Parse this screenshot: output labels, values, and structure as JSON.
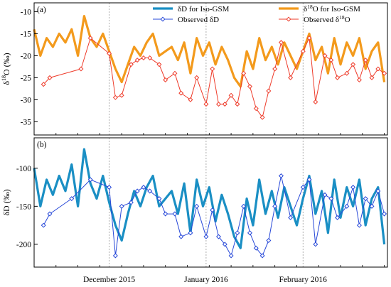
{
  "chart_data": {
    "type": "line",
    "x_axis": {
      "start": "2015-11-07",
      "end": "2016-02-28",
      "month_tick_labels": [
        {
          "date": "2015-12-01",
          "label": "December 2015"
        },
        {
          "date": "2016-01-01",
          "label": "January 2016"
        },
        {
          "date": "2016-02-01",
          "label": "February 2016"
        }
      ]
    },
    "legend": {
      "placement": "top",
      "entries": [
        {
          "label": "δD for Iso-GSM",
          "color": "#1a8fc4",
          "style": "thick-line"
        },
        {
          "label": "Observed δD",
          "color": "#2748d8",
          "style": "line-diamond"
        },
        {
          "label_pre": "δ",
          "label_sup": "18",
          "label_post": "O for Iso-GSM",
          "color": "#f39a1c",
          "style": "thick-line"
        },
        {
          "label_pre": "Observed δ",
          "label_sup": "18",
          "label_post": "O",
          "color": "#ee3b2a",
          "style": "line-diamond"
        }
      ]
    },
    "panels": [
      {
        "id": "a",
        "panel_label": "(a)",
        "ylabel_pre": "δ",
        "ylabel_sup": "18",
        "ylabel_post": "O (‰)",
        "ylim": [
          -38,
          -8
        ],
        "yticks": [
          -10,
          -15,
          -20,
          -25,
          -30,
          -35
        ],
        "series": [
          {
            "name": "δ18O for Iso-GSM",
            "color": "#f39a1c",
            "x": [
              "2015-11-07",
              "2015-11-09",
              "2015-11-11",
              "2015-11-13",
              "2015-11-15",
              "2015-11-17",
              "2015-11-19",
              "2015-11-21",
              "2015-11-23",
              "2015-11-25",
              "2015-11-27",
              "2015-11-29",
              "2015-12-01",
              "2015-12-03",
              "2015-12-05",
              "2015-12-07",
              "2015-12-09",
              "2015-12-11",
              "2015-12-13",
              "2015-12-15",
              "2015-12-17",
              "2015-12-19",
              "2015-12-21",
              "2015-12-23",
              "2015-12-25",
              "2015-12-27",
              "2015-12-29",
              "2015-12-31",
              "2016-01-02",
              "2016-01-04",
              "2016-01-06",
              "2016-01-08",
              "2016-01-10",
              "2016-01-12",
              "2016-01-14",
              "2016-01-16",
              "2016-01-18",
              "2016-01-20",
              "2016-01-22",
              "2016-01-24",
              "2016-01-26",
              "2016-01-28",
              "2016-01-30",
              "2016-02-01",
              "2016-02-03",
              "2016-02-05",
              "2016-02-07",
              "2016-02-09",
              "2016-02-11",
              "2016-02-13",
              "2016-02-15",
              "2016-02-17",
              "2016-02-19",
              "2016-02-21",
              "2016-02-23",
              "2016-02-25",
              "2016-02-27"
            ],
            "values": [
              -14,
              -20,
              -16,
              -18,
              -15,
              -17,
              -14,
              -20,
              -11,
              -16,
              -18,
              -15,
              -19,
              -23,
              -26,
              -22,
              -18,
              -20,
              -17,
              -15,
              -20,
              -19,
              -18,
              -21,
              -17,
              -24,
              -16,
              -20,
              -17,
              -22,
              -18,
              -21,
              -25,
              -27,
              -19,
              -23,
              -16,
              -21,
              -18,
              -22,
              -17,
              -20,
              -23,
              -19,
              -15,
              -21,
              -18,
              -24,
              -16,
              -22,
              -17,
              -20,
              -16,
              -23,
              -19,
              -17,
              -26
            ]
          },
          {
            "name": "Observed δ18O",
            "color": "#ee3b2a",
            "x": [
              "2015-11-10",
              "2015-11-12",
              "2015-11-22",
              "2015-11-25",
              "2015-12-01",
              "2015-12-03",
              "2015-12-05",
              "2015-12-08",
              "2015-12-10",
              "2015-12-12",
              "2015-12-14",
              "2015-12-17",
              "2015-12-19",
              "2015-12-22",
              "2015-12-24",
              "2015-12-27",
              "2015-12-29",
              "2016-01-01",
              "2016-01-03",
              "2016-01-05",
              "2016-01-07",
              "2016-01-09",
              "2016-01-11",
              "2016-01-13",
              "2016-01-15",
              "2016-01-17",
              "2016-01-19",
              "2016-01-21",
              "2016-01-23",
              "2016-01-25",
              "2016-01-28",
              "2016-02-01",
              "2016-02-03",
              "2016-02-05",
              "2016-02-08",
              "2016-02-10",
              "2016-02-12",
              "2016-02-15",
              "2016-02-17",
              "2016-02-19",
              "2016-02-21",
              "2016-02-23",
              "2016-02-25",
              "2016-02-27"
            ],
            "values": [
              -26.5,
              -25,
              -23,
              -16,
              -19.5,
              -29.5,
              -29,
              -22,
              -21,
              -20.5,
              -20.5,
              -22,
              -25.5,
              -24,
              -28.5,
              -30,
              -25,
              -31,
              -23,
              -31,
              -31,
              -29,
              -31,
              -24,
              -27,
              -32,
              -34,
              -28,
              -23,
              -17,
              -25,
              -19,
              -16,
              -30.5,
              -20,
              -21,
              -25,
              -24,
              -22,
              -25.5,
              -21,
              -25,
              -23,
              -24
            ]
          }
        ]
      },
      {
        "id": "b",
        "panel_label": "(b)",
        "ylabel_pre": "δD (‰)",
        "ylabel_sup": "",
        "ylabel_post": "",
        "ylim": [
          -230,
          -60
        ],
        "yticks": [
          -100,
          -150,
          -200
        ],
        "series": [
          {
            "name": "δD for Iso-GSM",
            "color": "#1a8fc4",
            "x": [
              "2015-11-07",
              "2015-11-09",
              "2015-11-11",
              "2015-11-13",
              "2015-11-15",
              "2015-11-17",
              "2015-11-19",
              "2015-11-21",
              "2015-11-23",
              "2015-11-25",
              "2015-11-27",
              "2015-11-29",
              "2015-12-01",
              "2015-12-03",
              "2015-12-05",
              "2015-12-07",
              "2015-12-09",
              "2015-12-11",
              "2015-12-13",
              "2015-12-15",
              "2015-12-17",
              "2015-12-19",
              "2015-12-21",
              "2015-12-23",
              "2015-12-25",
              "2015-12-27",
              "2015-12-29",
              "2015-12-31",
              "2016-01-02",
              "2016-01-04",
              "2016-01-06",
              "2016-01-08",
              "2016-01-10",
              "2016-01-12",
              "2016-01-14",
              "2016-01-16",
              "2016-01-18",
              "2016-01-20",
              "2016-01-22",
              "2016-01-24",
              "2016-01-26",
              "2016-01-28",
              "2016-01-30",
              "2016-02-01",
              "2016-02-03",
              "2016-02-05",
              "2016-02-07",
              "2016-02-09",
              "2016-02-11",
              "2016-02-13",
              "2016-02-15",
              "2016-02-17",
              "2016-02-19",
              "2016-02-21",
              "2016-02-23",
              "2016-02-25",
              "2016-02-27"
            ],
            "values": [
              -100,
              -150,
              -115,
              -135,
              -110,
              -130,
              -95,
              -150,
              -75,
              -120,
              -140,
              -110,
              -145,
              -175,
              -195,
              -160,
              -130,
              -150,
              -125,
              -110,
              -150,
              -140,
              -130,
              -160,
              -120,
              -185,
              -115,
              -150,
              -125,
              -170,
              -135,
              -160,
              -190,
              -205,
              -140,
              -175,
              -115,
              -160,
              -130,
              -165,
              -125,
              -150,
              -175,
              -140,
              -110,
              -160,
              -130,
              -185,
              -115,
              -165,
              -125,
              -150,
              -115,
              -175,
              -140,
              -125,
              -200
            ]
          },
          {
            "name": "Observed δD",
            "color": "#2748d8",
            "x": [
              "2015-11-10",
              "2015-11-12",
              "2015-11-19",
              "2015-11-25",
              "2015-12-01",
              "2015-12-03",
              "2015-12-05",
              "2015-12-08",
              "2015-12-10",
              "2015-12-12",
              "2015-12-14",
              "2015-12-17",
              "2015-12-19",
              "2015-12-22",
              "2015-12-24",
              "2015-12-27",
              "2015-12-29",
              "2016-01-01",
              "2016-01-03",
              "2016-01-05",
              "2016-01-07",
              "2016-01-09",
              "2016-01-11",
              "2016-01-13",
              "2016-01-15",
              "2016-01-17",
              "2016-01-19",
              "2016-01-21",
              "2016-01-23",
              "2016-01-25",
              "2016-01-28",
              "2016-02-01",
              "2016-02-03",
              "2016-02-05",
              "2016-02-08",
              "2016-02-10",
              "2016-02-12",
              "2016-02-15",
              "2016-02-17",
              "2016-02-19",
              "2016-02-21",
              "2016-02-23",
              "2016-02-25",
              "2016-02-27"
            ],
            "values": [
              -175,
              -160,
              -140,
              -115,
              -125,
              -215,
              -150,
              -145,
              -130,
              -125,
              -130,
              -140,
              -160,
              -160,
              -190,
              -185,
              -150,
              -190,
              -155,
              -190,
              -200,
              -215,
              -185,
              -150,
              -185,
              -205,
              -215,
              -195,
              -150,
              -110,
              -165,
              -125,
              -115,
              -200,
              -135,
              -140,
              -165,
              -150,
              -125,
              -175,
              -140,
              -150,
              -130,
              -160
            ]
          }
        ]
      }
    ]
  }
}
